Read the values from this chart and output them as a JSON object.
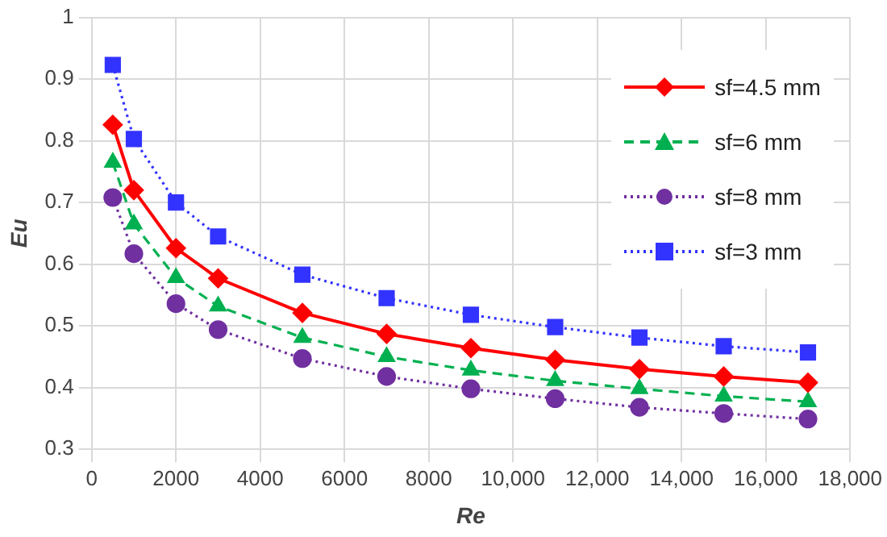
{
  "chart_data": {
    "type": "line",
    "xlabel": "Re",
    "ylabel": "Eu",
    "x": [
      500,
      1000,
      2000,
      3000,
      5000,
      7000,
      9000,
      11000,
      13000,
      15000,
      17000
    ],
    "series": [
      {
        "name": "sf=4.5 mm",
        "color": "#ff0000",
        "marker": "diamond",
        "line_style": "solid",
        "values": [
          0.826,
          0.72,
          0.626,
          0.577,
          0.521,
          0.487,
          0.464,
          0.445,
          0.43,
          0.418,
          0.408
        ]
      },
      {
        "name": "sf=6 mm",
        "color": "#00b050",
        "marker": "triangle",
        "line_style": "dashed",
        "values": [
          0.765,
          0.665,
          0.578,
          0.532,
          0.481,
          0.45,
          0.428,
          0.411,
          0.398,
          0.386,
          0.377
        ]
      },
      {
        "name": "sf=8 mm",
        "color": "#7030a0",
        "marker": "circle",
        "line_style": "dotted",
        "values": [
          0.708,
          0.617,
          0.536,
          0.494,
          0.447,
          0.418,
          0.398,
          0.382,
          0.368,
          0.358,
          0.349
        ]
      },
      {
        "name": "sf=3 mm",
        "color": "#3333ff",
        "marker": "square",
        "line_style": "dotted",
        "values": [
          0.923,
          0.803,
          0.7,
          0.645,
          0.583,
          0.545,
          0.518,
          0.498,
          0.481,
          0.467,
          0.457
        ]
      }
    ],
    "xlim": [
      0,
      18000
    ],
    "xticks": [
      0,
      2000,
      4000,
      6000,
      8000,
      {
        "value": 10000,
        "label": "10,000"
      },
      {
        "value": 12000,
        "label": "12,000"
      },
      {
        "value": 14000,
        "label": "14,000"
      },
      {
        "value": 16000,
        "label": "16,000"
      },
      {
        "value": 18000,
        "label": "18,000"
      }
    ],
    "ylim": [
      0.3,
      1
    ],
    "yticks": [
      0.3,
      0.4,
      0.5,
      0.6,
      0.7,
      0.8,
      0.9,
      1
    ],
    "grid": true,
    "legend": "top right"
  }
}
